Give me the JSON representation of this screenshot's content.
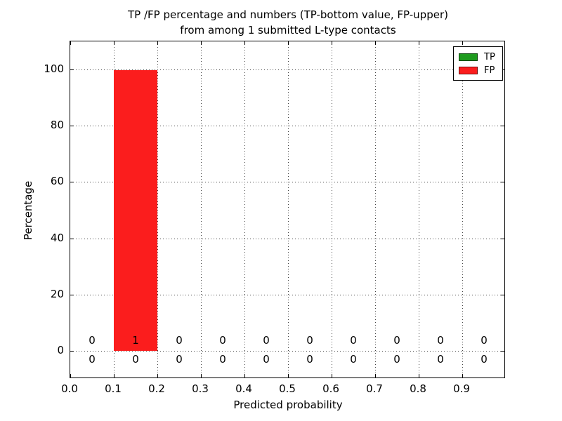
{
  "figure": {
    "title_line1": "TP /FP percentage and numbers (TP-bottom value, FP-upper)",
    "title_line2": "from among 1 submitted L-type contacts"
  },
  "chart_data": {
    "type": "bar",
    "title": "TP /FP percentage and numbers (TP-bottom value, FP-upper)\nfrom among 1 submitted L-type contacts",
    "xlabel": "Predicted probability",
    "ylabel": "Percentage",
    "xlim": [
      0.0,
      1.0
    ],
    "ylim": [
      -10,
      110
    ],
    "grid": true,
    "x_tick_values": [
      0.0,
      0.1,
      0.2,
      0.3,
      0.4,
      0.5,
      0.6,
      0.7,
      0.8,
      0.9
    ],
    "x_tick_labels": [
      "0.0",
      "0.1",
      "0.2",
      "0.3",
      "0.4",
      "0.5",
      "0.6",
      "0.7",
      "0.8",
      "0.9"
    ],
    "y_tick_values": [
      0,
      20,
      40,
      60,
      80,
      100
    ],
    "y_tick_labels": [
      "0",
      "20",
      "40",
      "60",
      "80",
      "100"
    ],
    "bin_starts": [
      0.0,
      0.1,
      0.2,
      0.3,
      0.4,
      0.5,
      0.6,
      0.7,
      0.8,
      0.9
    ],
    "bin_width": 0.1,
    "series": [
      {
        "name": "TP",
        "color": "#1e9b1e",
        "percentages": [
          0,
          0,
          0,
          0,
          0,
          0,
          0,
          0,
          0,
          0
        ],
        "counts": [
          0,
          0,
          0,
          0,
          0,
          0,
          0,
          0,
          0,
          0
        ]
      },
      {
        "name": "FP",
        "color": "#fb1d1d",
        "percentages": [
          0,
          100,
          0,
          0,
          0,
          0,
          0,
          0,
          0,
          0
        ],
        "counts": [
          0,
          1,
          0,
          0,
          0,
          0,
          0,
          0,
          0,
          0
        ]
      }
    ],
    "count_annotations": {
      "fp_row": [
        "0",
        "1",
        "0",
        "0",
        "0",
        "0",
        "0",
        "0",
        "0",
        "0"
      ],
      "tp_row": [
        "0",
        "0",
        "0",
        "0",
        "0",
        "0",
        "0",
        "0",
        "0",
        "0"
      ]
    },
    "legend": {
      "position": "upper right",
      "entries": [
        {
          "label": "TP",
          "color": "#1e9b1e"
        },
        {
          "label": "FP",
          "color": "#fb1d1d"
        }
      ]
    }
  }
}
